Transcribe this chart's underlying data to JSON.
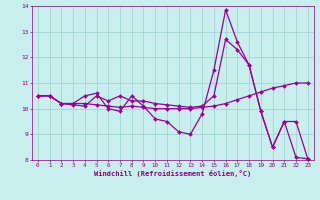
{
  "xlabel": "Windchill (Refroidissement éolien,°C)",
  "background_color": "#c8eeee",
  "grid_color": "#9ecece",
  "line_color": "#990099",
  "tick_color": "#880088",
  "xlim": [
    -0.5,
    23.5
  ],
  "ylim": [
    8,
    14
  ],
  "yticks": [
    8,
    9,
    10,
    11,
    12,
    13,
    14
  ],
  "xticks": [
    0,
    1,
    2,
    3,
    4,
    5,
    6,
    7,
    8,
    9,
    10,
    11,
    12,
    13,
    14,
    15,
    16,
    17,
    18,
    19,
    20,
    21,
    22,
    23
  ],
  "series1_x": [
    0,
    1,
    2,
    3,
    4,
    5,
    6,
    7,
    8,
    9,
    10,
    11,
    12,
    13,
    14,
    15,
    16,
    17,
    18,
    19,
    20,
    21,
    22,
    23
  ],
  "series1_y": [
    10.5,
    10.5,
    10.2,
    10.2,
    10.5,
    10.6,
    10.0,
    9.9,
    10.5,
    10.1,
    9.6,
    9.5,
    9.1,
    9.0,
    9.8,
    11.5,
    13.85,
    12.6,
    11.7,
    9.9,
    8.5,
    9.5,
    8.1,
    8.05
  ],
  "series2_x": [
    0,
    1,
    2,
    3,
    4,
    5,
    6,
    7,
    8,
    9,
    10,
    11,
    12,
    13,
    14,
    15,
    16,
    17,
    18,
    19,
    20,
    21,
    22,
    23
  ],
  "series2_y": [
    10.5,
    10.5,
    10.2,
    10.2,
    10.2,
    10.15,
    10.1,
    10.05,
    10.1,
    10.05,
    10.0,
    10.0,
    10.0,
    10.0,
    10.05,
    10.1,
    10.2,
    10.35,
    10.5,
    10.65,
    10.8,
    10.9,
    11.0,
    11.0
  ],
  "series3_x": [
    0,
    1,
    2,
    3,
    4,
    5,
    6,
    7,
    8,
    9,
    10,
    11,
    12,
    13,
    14,
    15,
    16,
    17,
    18,
    19,
    20,
    21,
    22,
    23
  ],
  "series3_y": [
    10.5,
    10.5,
    10.2,
    10.15,
    10.1,
    10.5,
    10.3,
    10.5,
    10.3,
    10.3,
    10.2,
    10.15,
    10.1,
    10.05,
    10.1,
    10.5,
    12.7,
    12.3,
    11.7,
    9.9,
    8.5,
    9.5,
    9.5,
    8.05
  ]
}
